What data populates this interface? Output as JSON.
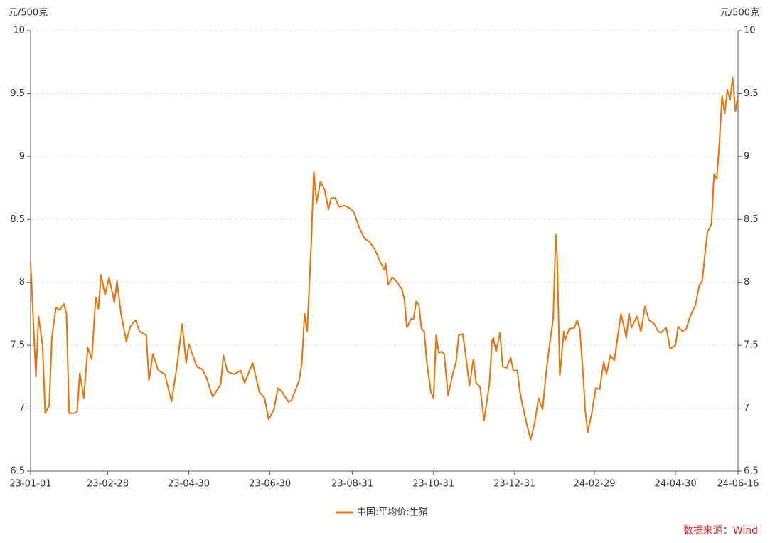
{
  "chart_data": {
    "type": "line",
    "y_label": "元/500克",
    "y2_label": "元/500克",
    "source": "数据来源：Wind",
    "xlim": [
      "23-01-01",
      "24-06-16"
    ],
    "xticks": [
      "23-01-01",
      "23-02-28",
      "23-04-30",
      "23-06-30",
      "23-08-31",
      "23-10-31",
      "23-12-31",
      "24-02-29",
      "24-04-30",
      "24-06-16"
    ],
    "ylim": [
      6.5,
      10
    ],
    "yticks": [
      6.5,
      7,
      7.5,
      8,
      8.5,
      9,
      9.5,
      10
    ],
    "y2lim": [
      6.5,
      10
    ],
    "y2ticks": [
      6.5,
      7,
      7.5,
      8,
      8.5,
      9,
      9.5,
      10
    ],
    "grid": true,
    "x": [
      "23-01-01",
      "23-01-05",
      "23-01-07",
      "23-01-10",
      "23-01-12",
      "23-01-15",
      "23-01-17",
      "23-01-20",
      "23-01-23",
      "23-01-26",
      "23-01-28",
      "23-01-30",
      "23-02-03",
      "23-02-05",
      "23-02-07",
      "23-02-10",
      "23-02-13",
      "23-02-16",
      "23-02-19",
      "23-02-21",
      "23-02-23",
      "23-02-26",
      "23-03-01",
      "23-03-05",
      "23-03-07",
      "23-03-10",
      "23-03-14",
      "23-03-17",
      "23-03-21",
      "23-03-24",
      "23-03-29",
      "23-03-31",
      "23-04-03",
      "23-04-07",
      "23-04-12",
      "23-04-17",
      "23-04-21",
      "23-04-25",
      "23-04-28",
      "23-04-30",
      "23-05-03",
      "23-05-06",
      "23-05-10",
      "23-05-13",
      "23-05-18",
      "23-05-24",
      "23-05-26",
      "23-05-29",
      "23-06-03",
      "23-06-08",
      "23-06-11",
      "23-06-17",
      "23-06-22",
      "23-06-26",
      "23-06-29",
      "23-07-03",
      "23-07-06",
      "23-07-09",
      "23-07-14",
      "23-07-16",
      "23-07-19",
      "23-07-22",
      "23-07-24",
      "23-07-26",
      "23-07-28",
      "23-07-31",
      "23-08-02",
      "23-08-04",
      "23-08-07",
      "23-08-10",
      "23-08-13",
      "23-08-15",
      "23-08-18",
      "23-08-21",
      "23-08-25",
      "23-08-29",
      "23-09-01",
      "23-09-05",
      "23-09-09",
      "23-09-13",
      "23-09-17",
      "23-09-21",
      "23-09-24",
      "23-09-25",
      "23-09-27",
      "23-09-30",
      "23-10-03",
      "23-10-07",
      "23-10-09",
      "23-10-11",
      "23-10-14",
      "23-10-16",
      "23-10-18",
      "23-10-20",
      "23-10-22",
      "23-10-24",
      "23-10-26",
      "23-10-29",
      "23-10-31",
      "23-11-02",
      "23-11-04",
      "23-11-06",
      "23-11-08",
      "23-11-11",
      "23-11-14",
      "23-11-17",
      "23-11-19",
      "23-11-22",
      "23-11-24",
      "23-11-27",
      "23-11-30",
      "23-12-02",
      "23-12-05",
      "23-12-08",
      "23-12-12",
      "23-12-14",
      "23-12-15",
      "23-12-17",
      "23-12-20",
      "23-12-22",
      "23-12-25",
      "23-12-28",
      "23-12-30",
      "24-01-02",
      "24-01-04",
      "24-01-06",
      "24-01-09",
      "24-01-12",
      "24-01-15",
      "24-01-18",
      "24-01-21",
      "24-01-24",
      "24-01-27",
      "24-01-29",
      "24-01-31",
      "24-02-01",
      "24-02-03",
      "24-02-06",
      "24-02-07",
      "24-02-10",
      "24-02-14",
      "24-02-16",
      "24-02-18",
      "24-02-21",
      "24-02-22",
      "24-02-24",
      "24-02-27",
      "24-03-01",
      "24-03-04",
      "24-03-07",
      "24-03-09",
      "24-03-12",
      "24-03-15",
      "24-03-17",
      "24-03-20",
      "24-03-24",
      "24-03-26",
      "24-03-28",
      "24-04-01",
      "24-04-04",
      "24-04-07",
      "24-04-10",
      "24-04-14",
      "24-04-17",
      "24-04-19",
      "24-04-23",
      "24-04-26",
      "24-04-30",
      "24-05-02",
      "24-05-05",
      "24-05-08",
      "24-05-11",
      "24-05-15",
      "24-05-18",
      "24-05-20",
      "24-05-24",
      "24-05-27",
      "24-05-29",
      "24-05-31",
      "24-06-02",
      "24-06-04",
      "24-06-06",
      "24-06-08",
      "24-06-10",
      "24-06-12",
      "24-06-14",
      "24-06-16"
    ],
    "series": [
      {
        "name": "中国:平均价:生猪",
        "color": "#e8730c",
        "values": [
          8.16,
          7.25,
          7.73,
          7.5,
          6.96,
          7.02,
          7.56,
          7.8,
          7.78,
          7.83,
          7.75,
          6.96,
          6.96,
          6.97,
          7.28,
          7.08,
          7.48,
          7.39,
          7.88,
          7.79,
          8.06,
          7.9,
          8.04,
          7.84,
          8.01,
          7.75,
          7.53,
          7.65,
          7.7,
          7.61,
          7.58,
          7.22,
          7.43,
          7.3,
          7.27,
          7.05,
          7.33,
          7.67,
          7.36,
          7.51,
          7.42,
          7.33,
          7.31,
          7.25,
          7.09,
          7.19,
          7.42,
          7.29,
          7.27,
          7.3,
          7.2,
          7.36,
          7.13,
          7.08,
          6.91,
          6.99,
          7.16,
          7.13,
          7.05,
          7.06,
          7.14,
          7.22,
          7.36,
          7.75,
          7.61,
          8.29,
          8.88,
          8.63,
          8.8,
          8.74,
          8.58,
          8.67,
          8.67,
          8.6,
          8.61,
          8.59,
          8.56,
          8.44,
          8.35,
          8.32,
          8.26,
          8.16,
          8.1,
          8.15,
          7.98,
          8.04,
          8.01,
          7.95,
          7.87,
          7.64,
          7.71,
          7.71,
          7.85,
          7.82,
          7.63,
          7.61,
          7.36,
          7.13,
          7.08,
          7.58,
          7.44,
          7.45,
          7.43,
          7.1,
          7.25,
          7.37,
          7.58,
          7.59,
          7.44,
          7.18,
          7.39,
          7.2,
          7.17,
          6.9,
          7.19,
          7.53,
          7.56,
          7.45,
          7.6,
          7.33,
          7.32,
          7.4,
          7.3,
          7.3,
          7.13,
          7.02,
          6.88,
          6.75,
          6.88,
          7.08,
          6.99,
          7.31,
          7.56,
          7.71,
          8.38,
          8.21,
          7.26,
          7.61,
          7.54,
          7.63,
          7.64,
          7.7,
          7.63,
          7.19,
          6.99,
          6.81,
          6.96,
          7.16,
          7.15,
          7.37,
          7.27,
          7.42,
          7.38,
          7.53,
          7.75,
          7.56,
          7.75,
          7.64,
          7.73,
          7.61,
          7.81,
          7.7,
          7.67,
          7.61,
          7.6,
          7.64,
          7.47,
          7.5,
          7.65,
          7.61,
          7.63,
          7.73,
          7.82,
          7.98,
          8.01,
          8.4,
          8.46,
          8.86,
          8.82,
          9.11,
          9.48,
          9.34,
          9.53,
          9.45,
          9.63,
          9.36,
          9.48
        ]
      }
    ]
  }
}
